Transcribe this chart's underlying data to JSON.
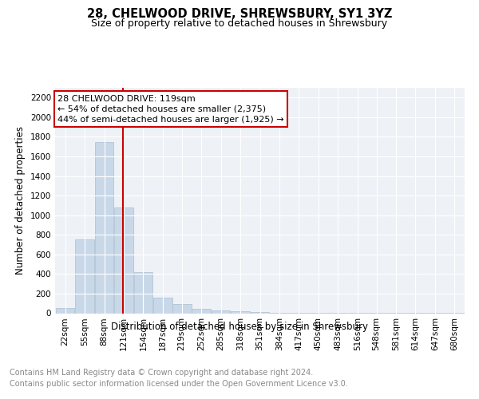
{
  "title": "28, CHELWOOD DRIVE, SHREWSBURY, SY1 3YZ",
  "subtitle": "Size of property relative to detached houses in Shrewsbury",
  "xlabel": "Distribution of detached houses by size in Shrewsbury",
  "ylabel": "Number of detached properties",
  "footnote1": "Contains HM Land Registry data © Crown copyright and database right 2024.",
  "footnote2": "Contains public sector information licensed under the Open Government Licence v3.0.",
  "property_label": "28 CHELWOOD DRIVE: 119sqm",
  "annotation_line1": "← 54% of detached houses are smaller (2,375)",
  "annotation_line2": "44% of semi-detached houses are larger (1,925) →",
  "bar_color": "#c8d8e8",
  "bar_edge_color": "#aabfcf",
  "red_line_x": 119,
  "categories": [
    "22sqm",
    "55sqm",
    "88sqm",
    "121sqm",
    "154sqm",
    "187sqm",
    "219sqm",
    "252sqm",
    "285sqm",
    "318sqm",
    "351sqm",
    "384sqm",
    "417sqm",
    "450sqm",
    "483sqm",
    "516sqm",
    "548sqm",
    "581sqm",
    "614sqm",
    "647sqm",
    "680sqm"
  ],
  "bin_centers": [
    22,
    55,
    88,
    121,
    154,
    187,
    219,
    252,
    285,
    318,
    351,
    384,
    417,
    450,
    483,
    516,
    548,
    581,
    614,
    647,
    680
  ],
  "bin_width": 33,
  "values": [
    50,
    750,
    1750,
    1075,
    420,
    155,
    90,
    45,
    25,
    20,
    10,
    8,
    5,
    3,
    2,
    2,
    1,
    1,
    1,
    1,
    1
  ],
  "ylim": [
    0,
    2300
  ],
  "yticks": [
    0,
    200,
    400,
    600,
    800,
    1000,
    1200,
    1400,
    1600,
    1800,
    2000,
    2200
  ],
  "xlim_min": 5,
  "xlim_max": 697,
  "background_color": "#eef2f7",
  "grid_color": "#ffffff",
  "annotation_box_facecolor": "#ffffff",
  "annotation_box_edgecolor": "#cc0000",
  "red_line_color": "#cc0000",
  "title_fontsize": 10.5,
  "subtitle_fontsize": 9,
  "ylabel_fontsize": 8.5,
  "xlabel_fontsize": 8.5,
  "tick_fontsize": 7.5,
  "annot_fontsize": 8,
  "footnote_fontsize": 7
}
